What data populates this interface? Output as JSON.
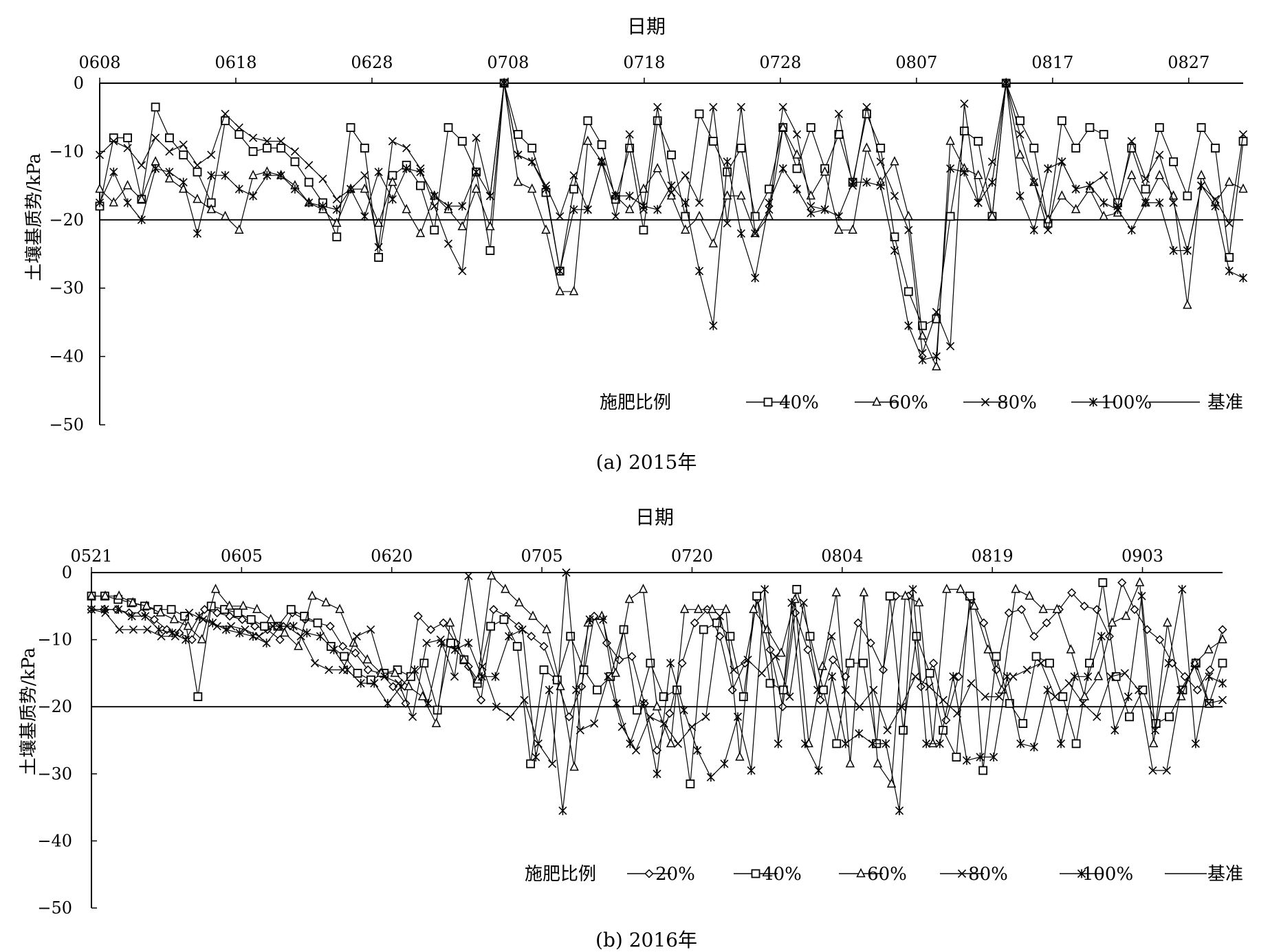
{
  "charts_common": {
    "y_ticks": [
      0,
      -10,
      -20,
      -30,
      -40,
      -50
    ],
    "legend_title": "施肥比例",
    "baseline_label": "基准",
    "baseline_value": -20
  },
  "chart_data": [
    {
      "type": "line",
      "caption": "(a) 2015年",
      "xlabel": "日期",
      "ylabel": "土壤基质势/kPa",
      "ylim": [
        -50,
        0
      ],
      "x_range_days": [
        0,
        84
      ],
      "x_tick_labels": [
        "0608",
        "0618",
        "0628",
        "0708",
        "0718",
        "0728",
        "0807",
        "0817",
        "0827"
      ],
      "x_tick_days": [
        0,
        10,
        20,
        30,
        40,
        50,
        60,
        70,
        80
      ],
      "series": [
        {
          "name": "40%",
          "marker": "square",
          "values": [
            -18,
            -8,
            -8,
            -17,
            -3.5,
            -8,
            -10.5,
            -13,
            -17.5,
            -5.5,
            -7.5,
            -10,
            -9.5,
            -9.5,
            -11.5,
            -14.5,
            -17.5,
            -22.5,
            -6.5,
            -9.5,
            -25.5,
            -13.5,
            -12,
            -15,
            -21.5,
            -6.5,
            -8.5,
            -13,
            -24.5,
            0,
            -7.5,
            -9.5,
            -16,
            -27.5,
            -15.5,
            -5.5,
            -9,
            -17,
            -9.5,
            -21.5,
            -5.5,
            -10.5,
            -19.5,
            -4.5,
            -8.5,
            -13,
            -9.5,
            -19.5,
            -15.5,
            -6.5,
            -12.5,
            -6.5,
            -12.5,
            -7.5,
            -14.5,
            -4.5,
            -9.5,
            -22.5,
            -30.5,
            -35.5,
            -34.5,
            -19.5,
            -7,
            -8.5,
            -19.5,
            0,
            -5.5,
            -9.5,
            -20.5,
            -5.5,
            -9.5,
            -6.5,
            -7.5,
            -17.5,
            -9.5,
            -15.5,
            -6.5,
            -11.5,
            -16.5,
            -6.5,
            -9.5,
            -25.5,
            -8.5
          ]
        },
        {
          "name": "60%",
          "marker": "triangle",
          "values": [
            -15.5,
            -17.5,
            -15,
            -17,
            -11.5,
            -14,
            -15.5,
            -17,
            -18.5,
            -19.5,
            -21.5,
            -13.5,
            -13,
            -13.5,
            -15,
            -17.5,
            -18.5,
            -20.5,
            -15.5,
            -15.5,
            -20.5,
            -14.5,
            -18.5,
            -22,
            -16.5,
            -18.5,
            -21,
            -15.5,
            -21,
            0,
            -14.5,
            -15.5,
            -21.5,
            -30.5,
            -30.5,
            -8.5,
            -11.5,
            -16.5,
            -18.5,
            -15.5,
            -12.5,
            -16.5,
            -21.5,
            -19.5,
            -23.5,
            -16.5,
            -16.5,
            -22,
            -19.5,
            -6.5,
            -10.5,
            -16.5,
            -13,
            -21.5,
            -21.5,
            -9.5,
            -14.5,
            -11.5,
            -19.5,
            -37,
            -41.5,
            -8.5,
            -12.5,
            -13.5,
            -19.5,
            0,
            -10.5,
            -14.5,
            -20,
            -16.5,
            -18.5,
            -15.5,
            -19.5,
            -19,
            -13.5,
            -17.5,
            -13.5,
            -16.5,
            -32.5,
            -13.5,
            -17.5,
            -14.5,
            -15.5
          ]
        },
        {
          "name": "80%",
          "marker": "x",
          "values": [
            -10.5,
            -8.5,
            -9.5,
            -12,
            -8,
            -10,
            -9,
            -12,
            -10.5,
            -4.5,
            -6.5,
            -8,
            -8.5,
            -8.5,
            -10,
            -12,
            -14,
            -17,
            -15.5,
            -13.5,
            -24,
            -8.5,
            -9.5,
            -12.5,
            -18,
            -23.5,
            -27.5,
            -8,
            -16.5,
            0,
            -10.5,
            -11.5,
            -15,
            -19.5,
            -13.5,
            -18.5,
            -11.5,
            -19.5,
            -7.5,
            -18.5,
            -3.5,
            -16,
            -13.5,
            -17.5,
            -3.5,
            -20.5,
            -3.5,
            -22,
            -18.5,
            -3.5,
            -7.5,
            -18,
            -18.5,
            -4.5,
            -15,
            -3.5,
            -11.5,
            -16.5,
            -21.5,
            -39.5,
            -33.5,
            -38.5,
            -3,
            -17.5,
            -11.5,
            0,
            -7.5,
            -14.5,
            -21.5,
            -11.5,
            -15.5,
            -15,
            -13.5,
            -18,
            -8.5,
            -14,
            -10.5,
            -17.5,
            -24.5,
            -15,
            -17,
            -20.5,
            -7.5
          ]
        },
        {
          "name": "100%",
          "marker": "asterisk",
          "values": [
            -17.5,
            -13,
            -17.5,
            -20,
            -12.5,
            -13,
            -14.5,
            -22,
            -13.5,
            -13.5,
            -15.5,
            -16.5,
            -13.5,
            -13.5,
            -15.5,
            -17.5,
            -18,
            -18.5,
            -15.5,
            -19.5,
            -13,
            -17,
            -12.5,
            -13,
            -16.5,
            -18,
            -18,
            -13,
            -16.5,
            0,
            -10.5,
            -11.5,
            -15.5,
            -27.5,
            -18.5,
            -18.5,
            -11.5,
            -16.5,
            -16.5,
            -18,
            -18.5,
            -15,
            -17.5,
            -27.5,
            -35.5,
            -11.5,
            -22,
            -28.5,
            -17.5,
            -12.5,
            -15.5,
            -19,
            -18.5,
            -19.5,
            -14.5,
            -14.5,
            -15,
            -24.5,
            -35.5,
            -40.5,
            -40,
            -12.5,
            -13,
            -17.5,
            -14.5,
            0,
            -16.5,
            -21.5,
            -12.5,
            -11.5,
            -15.5,
            -15,
            -17.5,
            -18.5,
            -21.5,
            -17.5,
            -17.5,
            -24.5,
            -24.5,
            -15,
            -18,
            -27.5,
            -28.5
          ]
        }
      ]
    },
    {
      "type": "line",
      "caption": "(b) 2016年",
      "xlabel": "日期",
      "ylabel": "土壤基质势/kPa",
      "ylim": [
        -50,
        0
      ],
      "x_range_days": [
        0,
        113
      ],
      "x_tick_labels": [
        "0521",
        "0605",
        "0620",
        "0705",
        "0720",
        "0804",
        "0819",
        "0903"
      ],
      "x_tick_days": [
        0,
        15,
        30,
        45,
        60,
        75,
        90,
        105
      ],
      "series": [
        {
          "name": "20%",
          "marker": "diamond",
          "values": [
            -5.5,
            -5.5,
            -5.5,
            -6,
            -6,
            -7,
            -8.5,
            -9,
            -10,
            -5.5,
            -6,
            -6.5,
            -7,
            -8,
            -8.5,
            -10,
            -6,
            -7,
            -7.5,
            -8,
            -11,
            -12,
            -14.5,
            -15,
            -17,
            -19.5,
            -6.5,
            -8.5,
            -7.5,
            -10.5,
            -14,
            -19,
            -5.5,
            -6.5,
            -8,
            -9.5,
            -11,
            -16,
            -21.5,
            -17,
            -6.5,
            -10.5,
            -13,
            -12.5,
            -19.5,
            -26.5,
            -21,
            -13.5,
            -7.5,
            -5.5,
            -9.5,
            -17.5,
            -13.5,
            -4,
            -11.5,
            -20,
            -6,
            -11.5,
            -19,
            -13,
            -15.5,
            -7.5,
            -10.5,
            -14.5,
            -3.5,
            -3.5,
            -17,
            -13.5,
            -22,
            -15.5,
            -4,
            -7.5,
            -14.5,
            -6,
            -5.5,
            -9.5,
            -7.5,
            -5.5,
            -3,
            -5,
            -5.5,
            -9.5,
            -1.5,
            -5.5,
            -8.5,
            -10,
            -13.5,
            -15.5,
            -17.5,
            -14.5,
            -8.5
          ]
        },
        {
          "name": "40%",
          "marker": "square",
          "values": [
            -3.5,
            -3.5,
            -4,
            -4.5,
            -5,
            -5.5,
            -5.5,
            -6.5,
            -18.5,
            -5,
            -5.5,
            -6,
            -7,
            -8,
            -8,
            -5.5,
            -6.5,
            -7.5,
            -11,
            -12.5,
            -15,
            -16,
            -15,
            -14.5,
            -15.5,
            -13.5,
            -20.5,
            -10.5,
            -13,
            -16.5,
            -8,
            -7,
            -11,
            -28.5,
            -14.5,
            -16,
            -9.5,
            -14.5,
            -17.5,
            -15.5,
            -8.5,
            -20.5,
            -13.5,
            -18.5,
            -17.5,
            -31.5,
            -8.5,
            -7.5,
            -9.5,
            -18.5,
            -3.5,
            -16.5,
            -17.5,
            -2.5,
            -9.5,
            -17.5,
            -25.5,
            -13.5,
            -13.5,
            -25.5,
            -3.5,
            -23.5,
            -9.5,
            -15,
            -23.5,
            -27.5,
            -3.5,
            -29.5,
            -12.5,
            -19.5,
            -22.5,
            -12.5,
            -13.5,
            -18.5,
            -25.5,
            -13.5,
            -1.5,
            -15.5,
            -21.5,
            -17.5,
            -22.5,
            -21.5,
            -17.5,
            -13.5,
            -19.5,
            -13.5
          ]
        },
        {
          "name": "60%",
          "marker": "triangle",
          "values": [
            -3.5,
            -3.5,
            -3.5,
            -4.5,
            -5,
            -6,
            -7,
            -8,
            -10,
            -2.5,
            -5,
            -5,
            -5.5,
            -7,
            -9,
            -11,
            -3.5,
            -4.5,
            -5.5,
            -10.5,
            -13,
            -15,
            -15,
            -17,
            -18.5,
            -22.5,
            -7.5,
            -13,
            -16,
            -0.5,
            -2.5,
            -4.5,
            -6.5,
            -8.5,
            -17,
            -29,
            -7.5,
            -6.5,
            -15,
            -4,
            -2.5,
            -20,
            -25.5,
            -5.5,
            -5.5,
            -5.5,
            -5.5,
            -27.5,
            -5.5,
            -8.5,
            -12,
            -4,
            -25.5,
            -14,
            -3,
            -28.5,
            -3,
            -28.5,
            -31.5,
            -3.5,
            -4.5,
            -25.5,
            -2.5,
            -2.5,
            -5,
            -11.5,
            -17.5,
            -2.5,
            -3.5,
            -5.5,
            -5.5,
            -11.5,
            -18.5,
            -15.5,
            -7.5,
            -6.5,
            -1.5,
            -25.5,
            -7.5,
            -18.5,
            -13.5,
            -11.5,
            -10
          ]
        },
        {
          "name": "80%",
          "marker": "x",
          "values": [
            -5.5,
            -6,
            -8.5,
            -8.5,
            -8.5,
            -9.5,
            -9.5,
            -6,
            -7,
            -8,
            -8,
            -8.5,
            -9.5,
            -8,
            -8,
            -9.5,
            -13.5,
            -14.5,
            -14.5,
            -9.5,
            -8.5,
            -15.5,
            -16.5,
            -21.5,
            -10.5,
            -10,
            -15.5,
            -0.5,
            -14,
            -20,
            -21.5,
            -19,
            -25.5,
            -28.5,
            0,
            -23.5,
            -22.5,
            -15.5,
            -23,
            -26.5,
            -21.5,
            -22.5,
            -25.5,
            -23,
            -21.5,
            -6.5,
            -14.5,
            -13,
            -15,
            -12.5,
            -18.5,
            -4.5,
            -17.5,
            -9.5,
            -17.5,
            -20,
            -17.5,
            -23.5,
            -20,
            -15.5,
            -17,
            -19,
            -21,
            -16.5,
            -18.5,
            -18.5,
            -15.5,
            -14.5,
            -13.5,
            -18.5,
            -16.5,
            -19.5,
            -21.5,
            -15.5,
            -15,
            -17.5,
            -29.5,
            -29.5,
            -17.5,
            -14,
            -19.5,
            -19
          ]
        },
        {
          "name": "100%",
          "marker": "asterisk",
          "values": [
            -5.5,
            -5.5,
            -5.5,
            -6.5,
            -6.5,
            -8.5,
            -9,
            -10,
            -6.5,
            -7.5,
            -8.5,
            -9,
            -9.5,
            -10.5,
            -8,
            -8,
            -9,
            -9.5,
            -11.5,
            -14.5,
            -16.5,
            -16.5,
            -19.5,
            -17,
            -14.5,
            -19.5,
            -10.5,
            -11.5,
            -10.5,
            -15.5,
            -15.5,
            -9.5,
            -8.5,
            -27.5,
            -17.5,
            -35.5,
            -17.5,
            -7,
            -7,
            -19.5,
            -25.5,
            -19.5,
            -30,
            -13.5,
            -20.5,
            -26.5,
            -30.5,
            -28.5,
            -21.5,
            -29.5,
            -2.5,
            -25.5,
            -4.5,
            -25.5,
            -29.5,
            -15.5,
            -25.5,
            -24,
            -25.5,
            -25.5,
            -35.5,
            -2.5,
            -25.5,
            -25.5,
            -15.5,
            -28,
            -27.5,
            -27.5,
            -15.5,
            -25.5,
            -26,
            -17.5,
            -25.5,
            -15.5,
            -15.5,
            -9.5,
            -23.5,
            -18.5,
            -3.5,
            -23.5,
            -13.5,
            -2.5,
            -25.5,
            -15.5,
            -16.5
          ]
        }
      ]
    }
  ]
}
